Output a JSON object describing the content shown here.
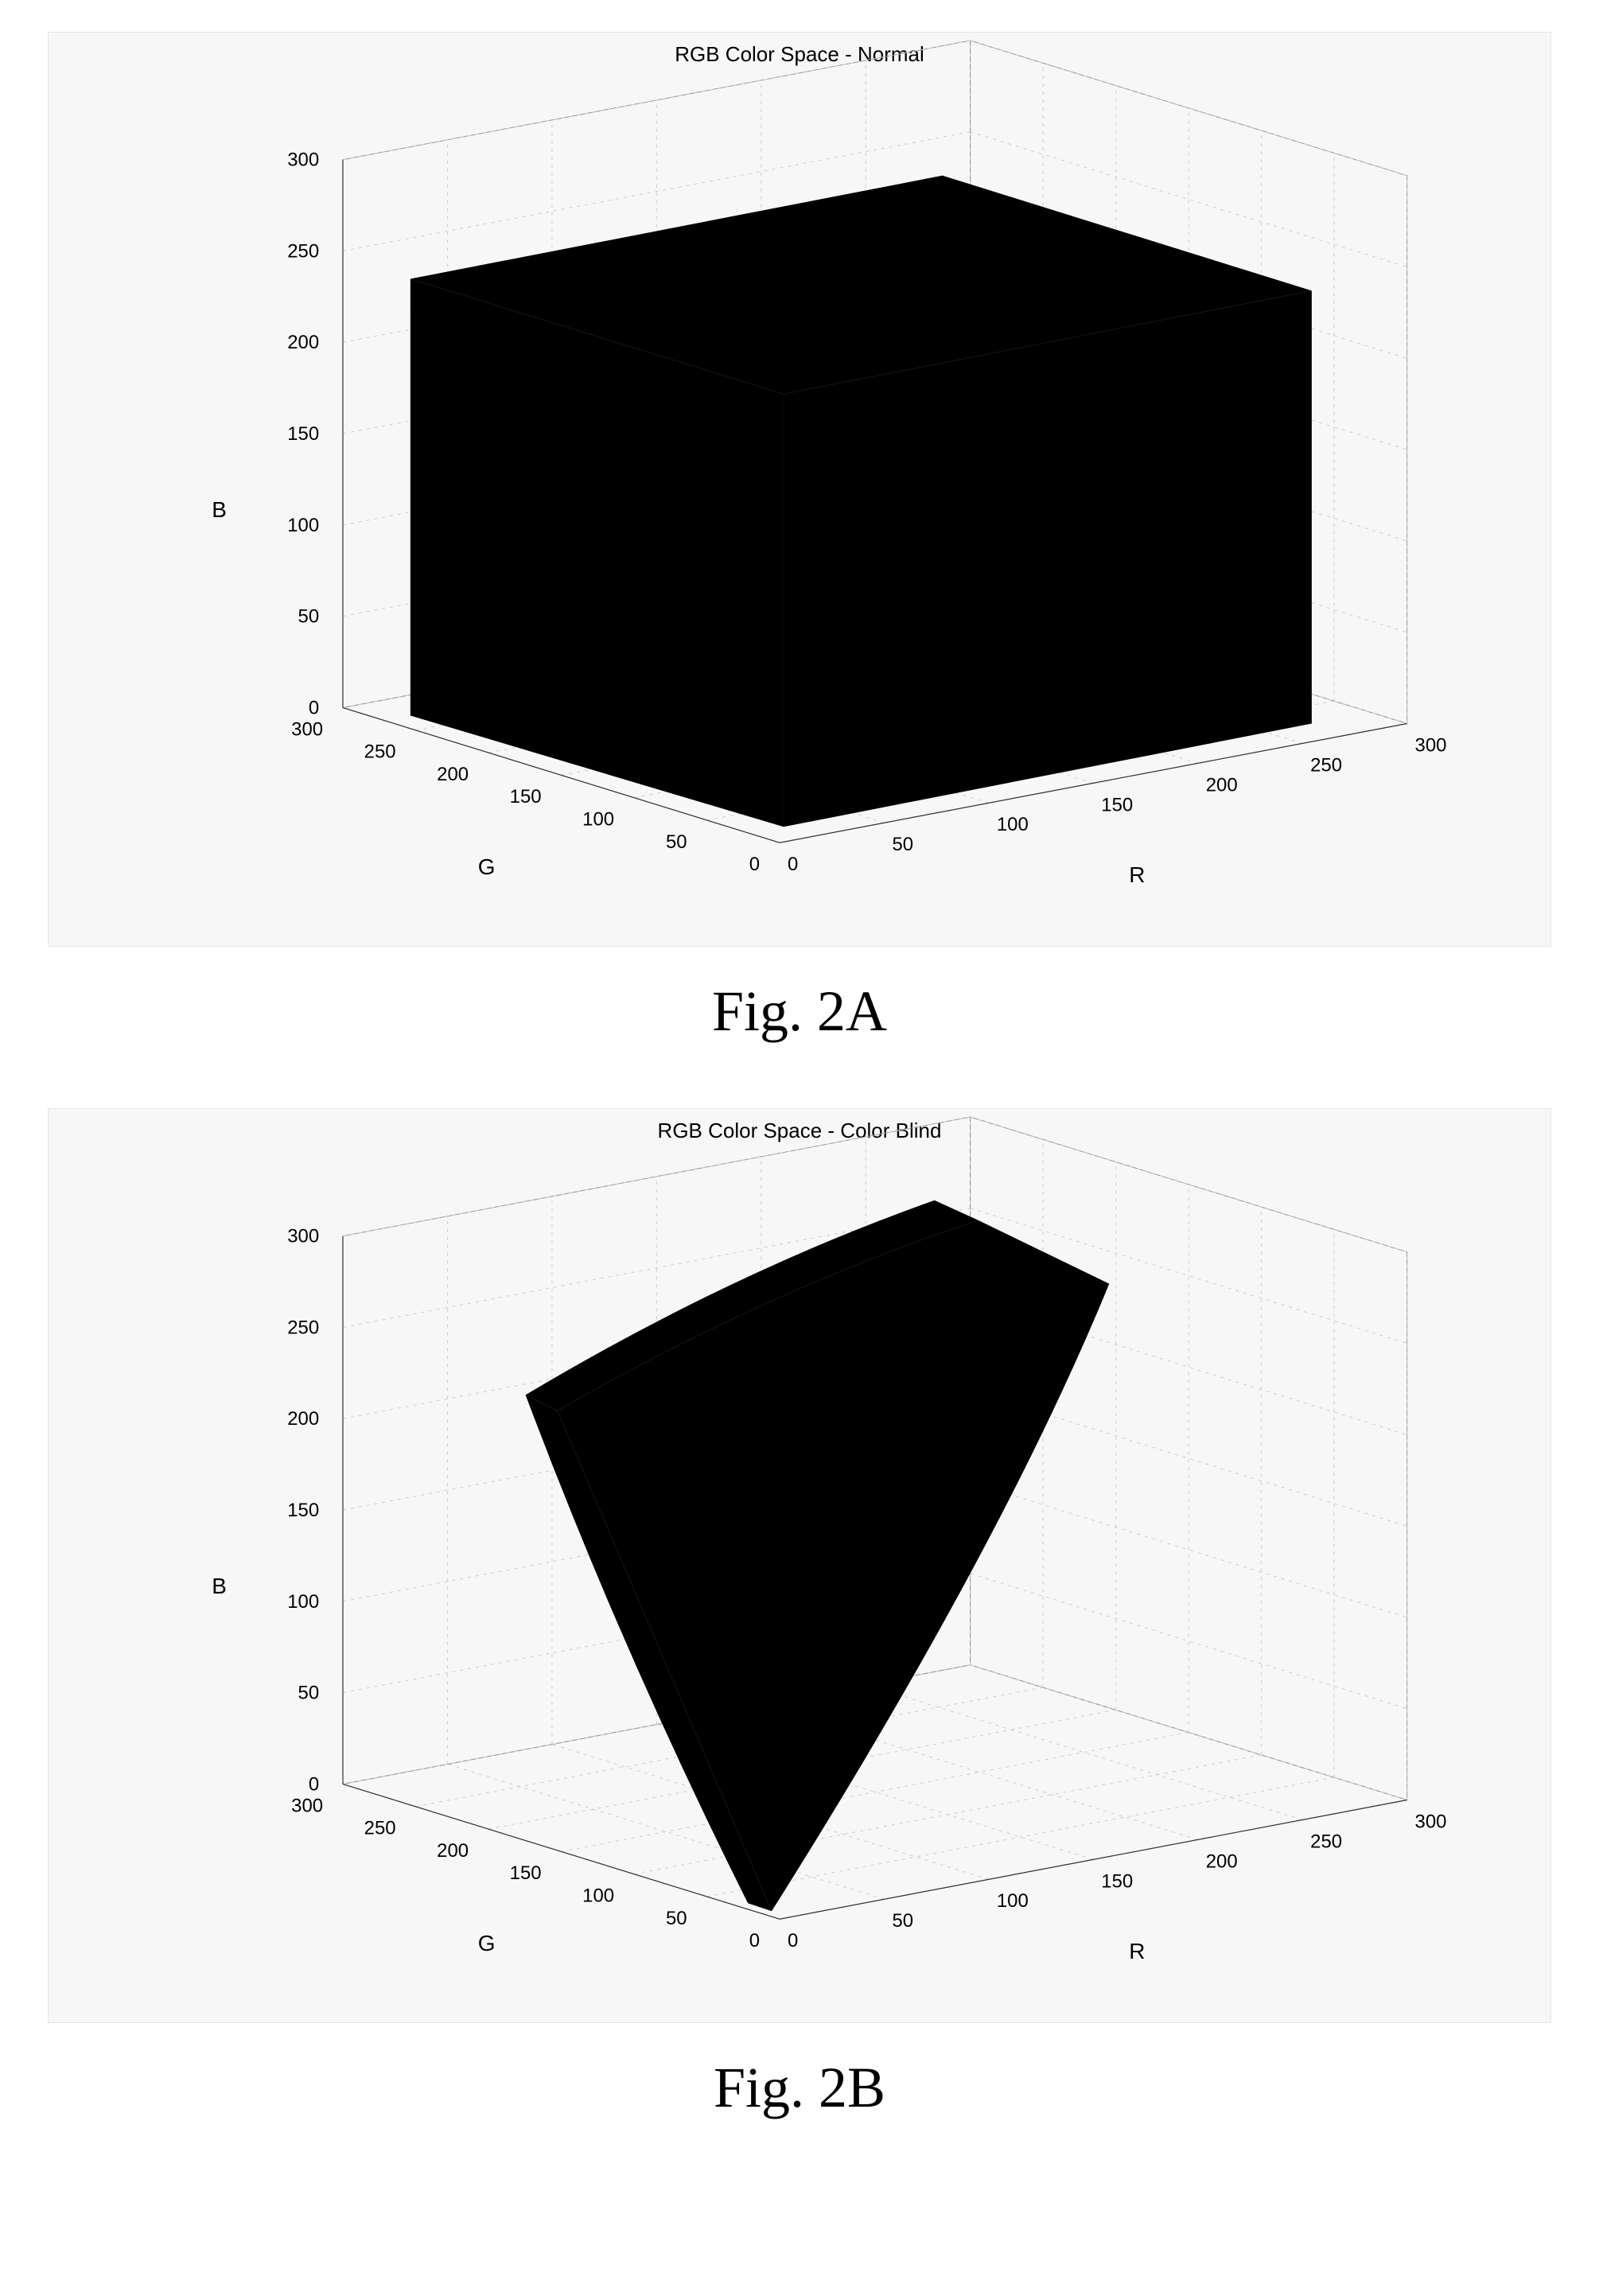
{
  "figureA": {
    "type": "3d-scatter",
    "title": "RGB Color Space - Normal",
    "caption": "Fig. 2A",
    "axes": {
      "x": {
        "label": "R",
        "min": 0,
        "max": 300,
        "tick_step": 50
      },
      "y": {
        "label": "G",
        "min": 0,
        "max": 300,
        "tick_step": 50
      },
      "z": {
        "label": "B",
        "min": 0,
        "max": 300,
        "tick_step": 50
      }
    },
    "background_color": "#f7f7f7",
    "grid_color": "#cccccc",
    "box_edge_color": "#999999",
    "shape_color": "#000000",
    "title_fontsize": 26,
    "tick_fontsize": 24,
    "label_fontsize": 28,
    "shape": {
      "kind": "cube-volume",
      "x_range": [
        0,
        255
      ],
      "y_range": [
        0,
        255
      ],
      "z_range": [
        0,
        255
      ]
    }
  },
  "figureB": {
    "type": "3d-scatter",
    "title": "RGB Color Space - Color Blind",
    "caption": "Fig. 2B",
    "axes": {
      "x": {
        "label": "R",
        "min": 0,
        "max": 300,
        "tick_step": 50
      },
      "y": {
        "label": "G",
        "min": 0,
        "max": 300,
        "tick_step": 50
      },
      "z": {
        "label": "B",
        "min": 0,
        "max": 300,
        "tick_step": 50
      }
    },
    "background_color": "#f7f7f7",
    "grid_color": "#cccccc",
    "box_edge_color": "#999999",
    "shape_color": "#000000",
    "title_fontsize": 26,
    "tick_fontsize": 24,
    "label_fontsize": 28,
    "shape": {
      "kind": "curved-surface",
      "corners_top": [
        [
          55,
          250,
          255
        ],
        [
          255,
          255,
          255
        ],
        [
          165,
          88,
          255
        ],
        [
          15,
          15,
          255
        ]
      ],
      "corners_bottom": [
        [
          0,
          0,
          0
        ]
      ],
      "notes": "Thin curved slab through RGB cube converging near origin"
    }
  }
}
